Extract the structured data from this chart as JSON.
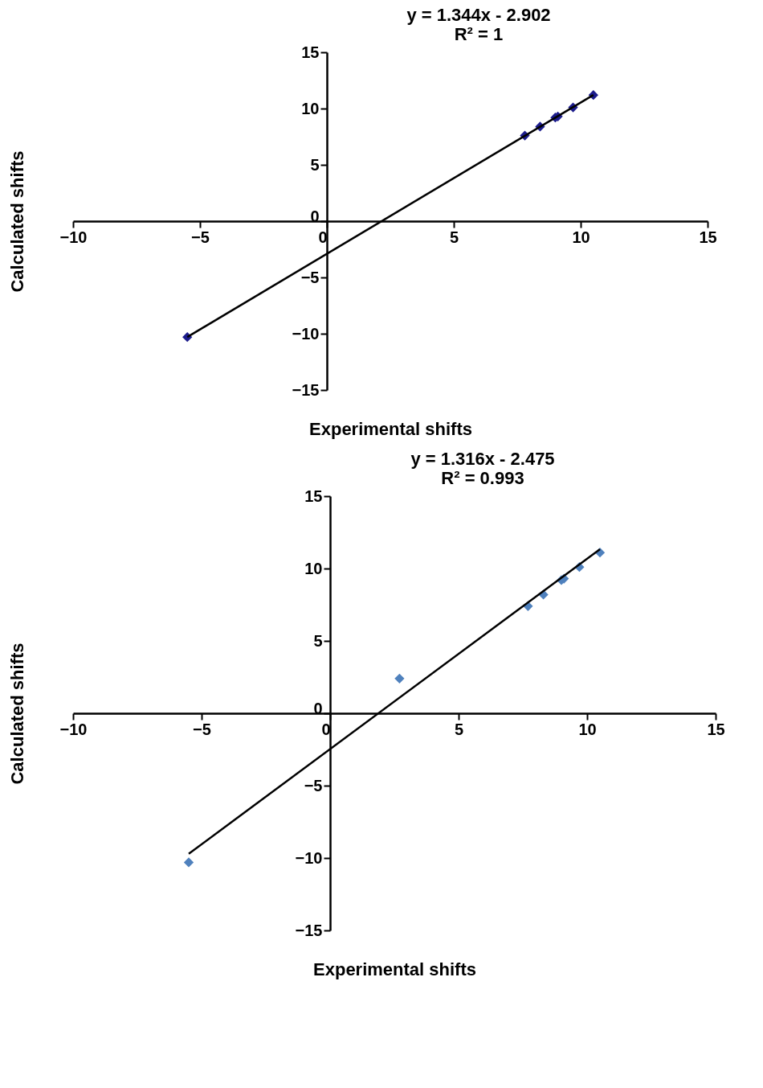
{
  "chart_data": [
    {
      "type": "scatter",
      "xlabel": "Experimental shifts",
      "ylabel": "Calculated shifts",
      "annotations": [
        "y = 1.344x - 2.902",
        "R² = 1"
      ],
      "xlim": [
        -10,
        15
      ],
      "ylim": [
        -15,
        15
      ],
      "xticks": [
        -10,
        -5,
        0,
        5,
        10,
        15
      ],
      "yticks": [
        -15,
        -10,
        -5,
        0,
        5,
        10,
        15
      ],
      "grid": false,
      "series": [
        {
          "type": "scatter",
          "color": "#1c1c8c",
          "marker": "diamond",
          "x": [
            -5.5,
            7.8,
            8.4,
            9.0,
            9.1,
            9.7,
            10.5
          ],
          "values": [
            -10.3,
            7.6,
            8.4,
            9.2,
            9.3,
            10.1,
            11.2
          ]
        },
        {
          "type": "line",
          "color": "#000000",
          "line_style": "solid",
          "x": [
            -5.5,
            10.5
          ],
          "values": [
            -10.29,
            11.21
          ]
        }
      ]
    },
    {
      "type": "scatter",
      "xlabel": "Experimental shifts",
      "ylabel": "Calculated shifts",
      "annotations": [
        "y = 1.316x - 2.475",
        "R² = 0.993"
      ],
      "xlim": [
        -10,
        15
      ],
      "ylim": [
        -15,
        15
      ],
      "xticks": [
        -10,
        -5,
        0,
        5,
        10,
        15
      ],
      "yticks": [
        -15,
        -10,
        -5,
        0,
        5,
        10,
        15
      ],
      "grid": false,
      "series": [
        {
          "type": "scatter",
          "color": "#4f81bd",
          "marker": "diamond",
          "x": [
            -5.5,
            2.7,
            7.7,
            8.3,
            9.0,
            9.1,
            9.7,
            10.5
          ],
          "values": [
            -10.3,
            2.4,
            7.4,
            8.2,
            9.2,
            9.3,
            10.1,
            11.1
          ]
        },
        {
          "type": "line",
          "color": "#000000",
          "line_style": "solid",
          "x": [
            -5.5,
            10.5
          ],
          "values": [
            -9.71,
            11.34
          ]
        }
      ]
    }
  ]
}
